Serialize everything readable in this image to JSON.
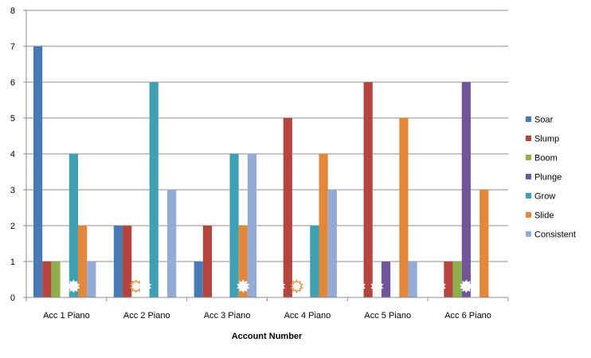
{
  "chart_data": {
    "type": "bar",
    "title": "",
    "xlabel": "Account Number",
    "ylabel": "",
    "ylim": [
      0,
      8
    ],
    "yticks": [
      0,
      1,
      2,
      3,
      4,
      5,
      6,
      7,
      8
    ],
    "grid": "horizontal",
    "legend_position": "right",
    "categories": [
      "Acc 1 Piano",
      "Acc 2 Piano",
      "Acc 3 Piano",
      "Acc 4 Piano",
      "Acc 5 Piano",
      "Acc 6 Piano"
    ],
    "series": [
      {
        "name": "Soar",
        "color": "#4a7ab5",
        "values": [
          7,
          2,
          1,
          0,
          0,
          0
        ]
      },
      {
        "name": "Slump",
        "color": "#b5443f",
        "values": [
          1,
          2,
          2,
          5,
          6,
          1
        ]
      },
      {
        "name": "Boom",
        "color": "#8eaf4b",
        "values": [
          1,
          0,
          0,
          0,
          0,
          1
        ]
      },
      {
        "name": "Plunge",
        "color": "#71559a",
        "values": [
          0,
          0,
          0,
          0,
          1,
          6
        ]
      },
      {
        "name": "Grow",
        "color": "#3fa0b3",
        "values": [
          4,
          6,
          4,
          2,
          0,
          0
        ]
      },
      {
        "name": "Slide",
        "color": "#e3873a",
        "values": [
          2,
          0,
          2,
          4,
          5,
          3
        ]
      },
      {
        "name": "Consistent",
        "color": "#93abd5",
        "values": [
          1,
          3,
          4,
          3,
          1,
          0
        ]
      }
    ],
    "markers": [
      {
        "category": 0,
        "series": 4,
        "style": "filled"
      },
      {
        "category": 1,
        "series": 2,
        "style": "outline"
      },
      {
        "category": 1,
        "series": 3,
        "style": "filled"
      },
      {
        "category": 2,
        "series": 5,
        "style": "filled"
      },
      {
        "category": 3,
        "series": 0,
        "style": "filled"
      },
      {
        "category": 3,
        "series": 2,
        "style": "outline"
      },
      {
        "category": 4,
        "series": 0,
        "style": "filled"
      },
      {
        "category": 4,
        "series": 2,
        "style": "filled"
      },
      {
        "category": 5,
        "series": 0,
        "style": "filled"
      },
      {
        "category": 5,
        "series": 3,
        "style": "filled"
      }
    ]
  }
}
